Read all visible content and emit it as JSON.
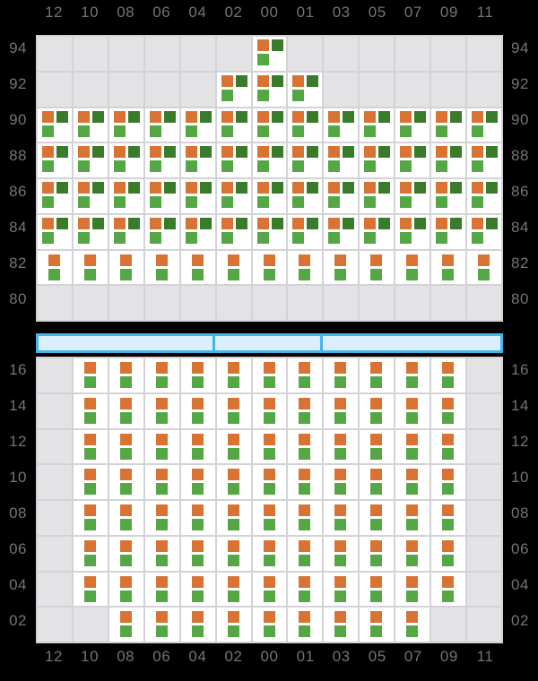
{
  "colors": {
    "background": "#000000",
    "panel_empty": "#e3e3e5",
    "grid_line": "#d3d3d7",
    "cell_filled": "#ffffff",
    "label": "#73737b",
    "orange": "#d97334",
    "dark_green": "#3a7b2b",
    "light_green": "#55a746",
    "slider_border": "#44b5e9",
    "slider_fill": "#dbeefb"
  },
  "chart_data": {
    "type": "heatmap",
    "x_categories": [
      "12",
      "10",
      "08",
      "06",
      "04",
      "02",
      "00",
      "01",
      "03",
      "05",
      "07",
      "09",
      "11"
    ],
    "x_axis_shown": "top and bottom",
    "y_axis_shown": "left and right",
    "grid": "light gray matrix, empty cells gray, data cells white",
    "cell_types": {
      "A": [
        "orange",
        "dark_green",
        "light_green"
      ],
      "B": [
        "orange",
        "light_green"
      ],
      ".": []
    },
    "panels": [
      {
        "name": "upper",
        "y_categories": [
          "94",
          "92",
          "90",
          "88",
          "86",
          "84",
          "82",
          "80"
        ],
        "rows": [
          "......A......",
          ".....AAA.....",
          "AAAAAAAAAAAAA",
          "AAAAAAAAAAAAA",
          "AAAAAAAAAAAAA",
          "AAAAAAAAAAAAA",
          "BBBBBBBBBBBBB",
          "............."
        ]
      },
      {
        "name": "lower",
        "y_categories": [
          "16",
          "14",
          "12",
          "10",
          "08",
          "06",
          "04",
          "02"
        ],
        "rows": [
          ".BBBBBBBBBBB.",
          ".BBBBBBBBBBB.",
          ".BBBBBBBBBBB.",
          ".BBBBBBBBBBB.",
          ".BBBBBBBBBBB.",
          ".BBBBBBBBBBB.",
          ".BBBBBBBBBBB.",
          "..BBBBBBBBB.."
        ]
      }
    ]
  },
  "slider": {
    "segment_widths_pct": [
      38.3,
      23.3,
      38.4
    ]
  }
}
